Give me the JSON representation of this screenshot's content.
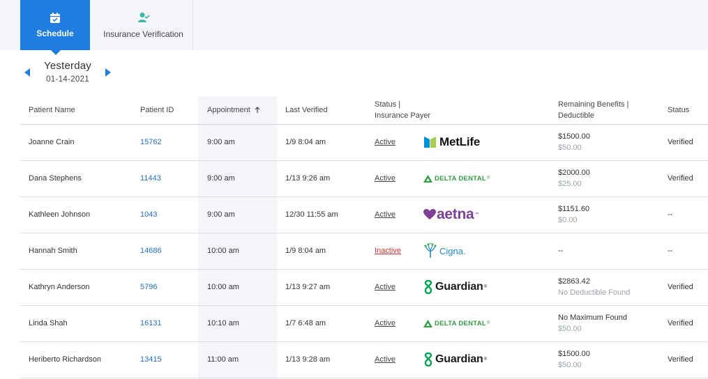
{
  "nav": {
    "tabs": [
      {
        "label": "Schedule",
        "icon": "calendar-check-icon",
        "active": true
      },
      {
        "label": "Insurance Verification",
        "icon": "user-check-icon",
        "active": false
      }
    ]
  },
  "date_nav": {
    "day": "Yesterday",
    "date": "01-14-2021"
  },
  "table": {
    "headers": {
      "patient_name": "Patient Name",
      "patient_id": "Patient ID",
      "appointment": "Appointment",
      "last_verified": "Last Verified",
      "status_payer_line1": "Status |",
      "status_payer_line2": "Insurance Payer",
      "benefits_line1": "Remaining Benefits |",
      "benefits_line2": "Deductible",
      "status": "Status"
    },
    "rows": [
      {
        "name": "Joanne Crain",
        "id": "15762",
        "appt": "9:00 am",
        "verified": "1/9 8:04 am",
        "status": "Active",
        "payer": "MetLife",
        "benefit": "$1500.00",
        "deductible": "$50.00",
        "verify_status": "Verified"
      },
      {
        "name": "Dana Stephens",
        "id": "11443",
        "appt": "9:00 am",
        "verified": "1/13 9:26 am",
        "status": "Active",
        "payer": "DELTA DENTAL",
        "benefit": "$2000.00",
        "deductible": "$25.00",
        "verify_status": "Verified"
      },
      {
        "name": "Kathleen Johnson",
        "id": "1043",
        "appt": "9:00 am",
        "verified": "12/30 11:55 am",
        "status": "Active",
        "payer": "aetna",
        "benefit": "$1151.60",
        "deductible": "$0.00",
        "verify_status": "--"
      },
      {
        "name": "Hannah Smith",
        "id": "14686",
        "appt": "10:00 am",
        "verified": "1/9 8:04 am",
        "status": "Inactive",
        "payer": "Cigna.",
        "benefit": "--",
        "deductible": "",
        "verify_status": "--"
      },
      {
        "name": "Kathryn Anderson",
        "id": "5796",
        "appt": "10:00 am",
        "verified": "1/13 9:27 am",
        "status": "Active",
        "payer": "Guardian",
        "benefit": "$2863.42",
        "deductible": "No Deductible Found",
        "verify_status": "Verified"
      },
      {
        "name": "Linda Shah",
        "id": "16131",
        "appt": "10:10 am",
        "verified": "1/7 6:48 am",
        "status": "Active",
        "payer": "DELTA DENTAL",
        "benefit": "No Maximum Found",
        "deductible": "$50.00",
        "verify_status": "Verified"
      },
      {
        "name": "Heriberto Richardson",
        "id": "13415",
        "appt": "11:00 am",
        "verified": "1/13 9:28 am",
        "status": "Active",
        "payer": "Guardian",
        "benefit": "$1500.00",
        "deductible": "$50.00",
        "verify_status": "Verified"
      }
    ]
  },
  "colors": {
    "accent": "#1f7ee0",
    "inactive": "#e02b2b",
    "metlife_blue": "#0090da",
    "metlife_green": "#a4ce4e",
    "delta_green": "#2e9e3e",
    "aetna_purple": "#7d3f98",
    "cigna_blue": "#1f8fc9",
    "cigna_green": "#3fae49",
    "guardian_green": "#00a651"
  }
}
